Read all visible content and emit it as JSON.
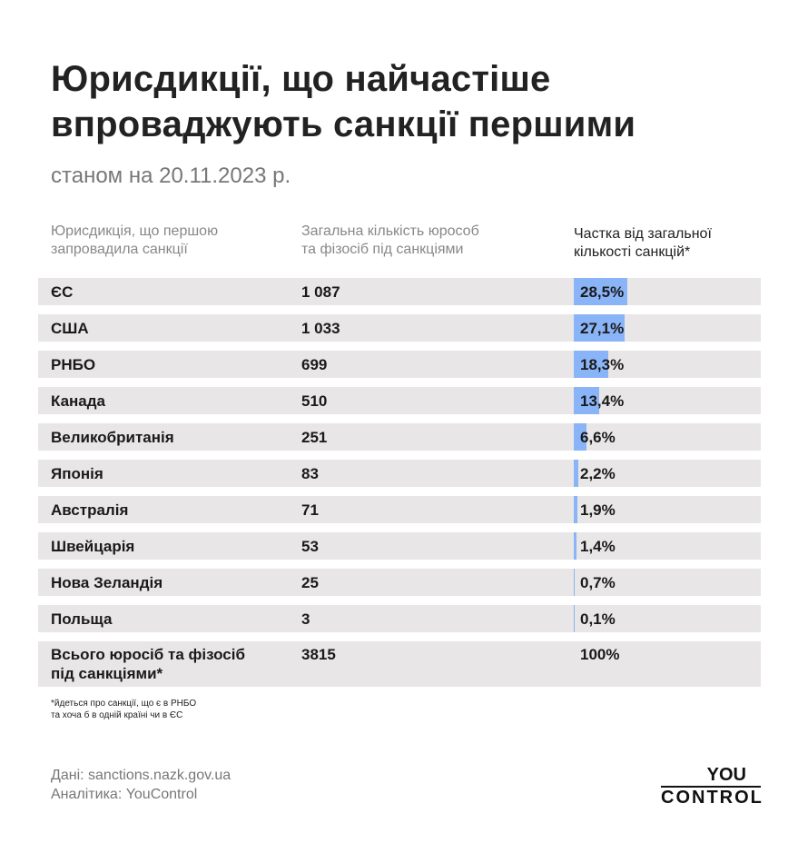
{
  "title_line1": "Юрисдикції, що найчастіше",
  "title_line2": "впроваджують санкції першими",
  "subtitle": "станом на 20.11.2023 р.",
  "colors": {
    "bar": "#8ab4f8",
    "row_bg": "#e8e6e6"
  },
  "chart_data": {
    "type": "table",
    "columns": [
      "Юрисдикція, що першою запровадила санкції",
      "Загальна кількість юрособ та фізосіб під санкціями",
      "Частка від загальної кількості санкцій*"
    ],
    "header_lines": [
      [
        "Юрисдикція, що першою",
        "запровадила санкції"
      ],
      [
        "Загальна кількість юрособ",
        "та фізосіб під санкціями"
      ],
      [
        "Частка від загальної",
        "кількості санкцій*"
      ]
    ],
    "rows": [
      {
        "name": "ЄС",
        "count": "1 087",
        "share": "28,5%",
        "value": 28.5
      },
      {
        "name": "США",
        "count": "1 033",
        "share": "27,1%",
        "value": 27.1
      },
      {
        "name": "РНБО",
        "count": "699",
        "share": "18,3%",
        "value": 18.3
      },
      {
        "name": "Канада",
        "count": "510",
        "share": "13,4%",
        "value": 13.4
      },
      {
        "name": "Великобританія",
        "count": "251",
        "share": "6,6%",
        "value": 6.6
      },
      {
        "name": "Японія",
        "count": "83",
        "share": "2,2%",
        "value": 2.2
      },
      {
        "name": "Австралія",
        "count": "71",
        "share": "1,9%",
        "value": 1.9
      },
      {
        "name": "Швейцарія",
        "count": "53",
        "share": "1,4%",
        "value": 1.4
      },
      {
        "name": "Нова Зеландія",
        "count": "25",
        "share": "0,7%",
        "value": 0.7
      },
      {
        "name": "Польща",
        "count": "3",
        "share": "0,1%",
        "value": 0.1
      }
    ],
    "total": {
      "name_line1": "Всього юросіб та фізосіб",
      "name_line2": "під санкціями*",
      "count": "3815",
      "share": "100%"
    }
  },
  "note_line1": "*йдеться про санкції, що є в РНБО",
  "note_line2": "та хоча б в одній країні чи в ЄС",
  "source": "Дані: sanctions.nazk.gov.ua",
  "analytics": "Аналітика: YouControl",
  "logo": {
    "line1": "YOU",
    "line2": "CONTROL"
  }
}
